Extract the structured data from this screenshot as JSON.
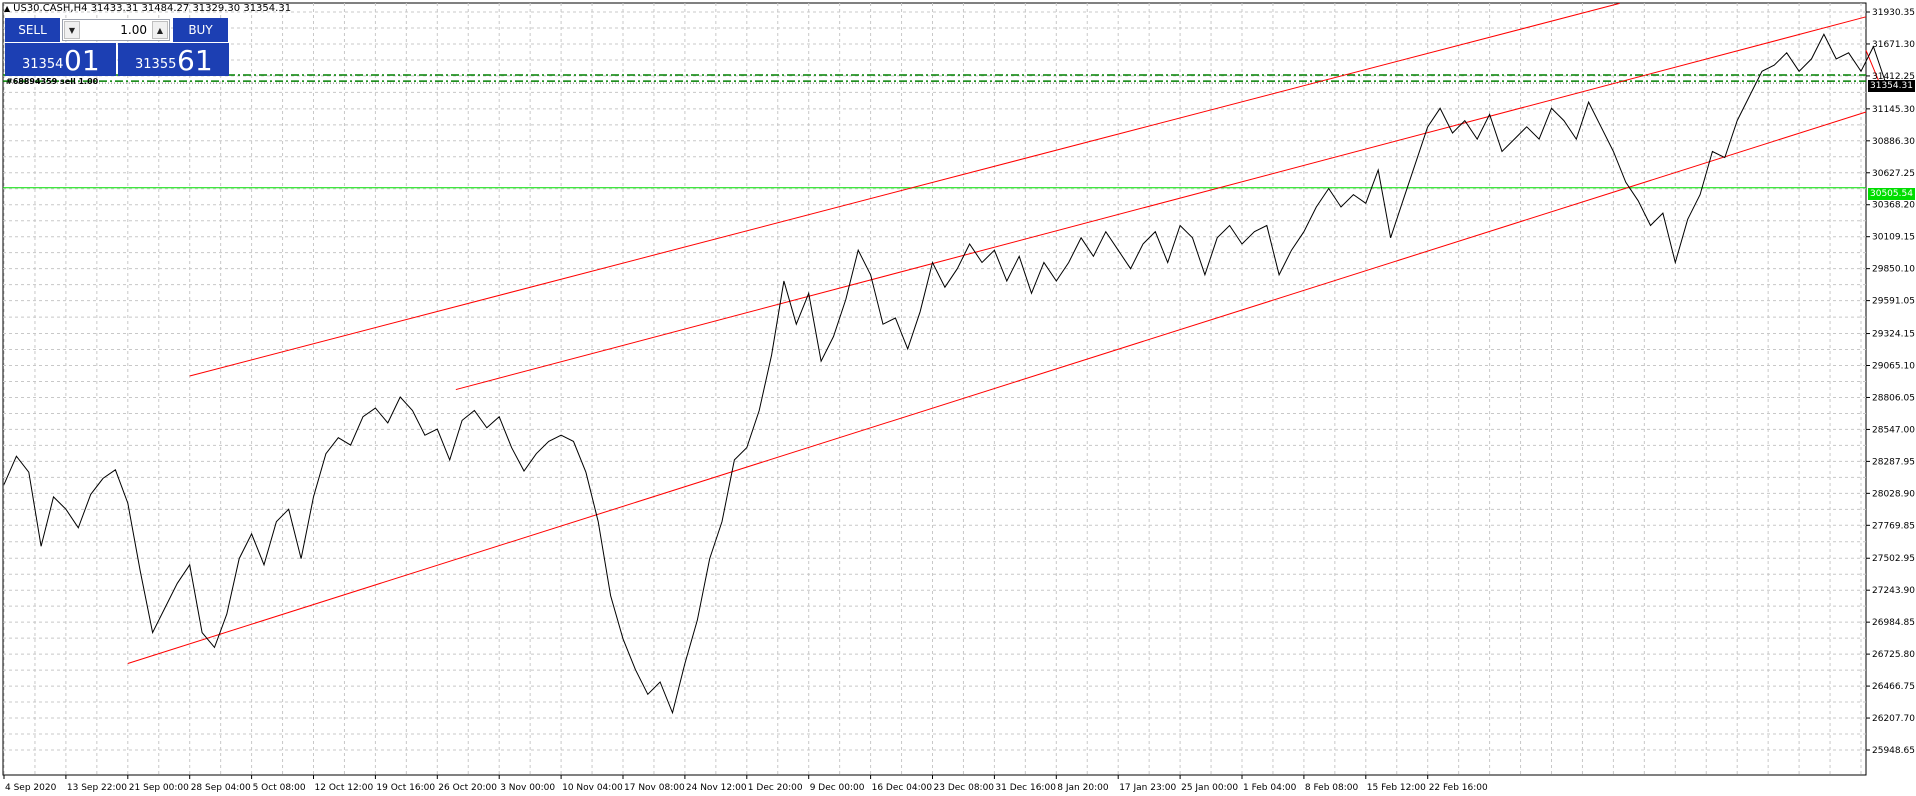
{
  "header": {
    "symbol_line": "US30.CASH,H4  31433.31 31484.27 31329.30 31354.31"
  },
  "one_click": {
    "sell_label": "SELL",
    "buy_label": "BUY",
    "volume": "1.00",
    "sell_price_small": "31354",
    "sell_price_big": "01",
    "buy_price_small": "31355",
    "buy_price_big": "61"
  },
  "order_label": "#68894359 sell 1.00",
  "price_tags": {
    "current": "31354.31",
    "green": "30505.54"
  },
  "colors": {
    "background": "#ffffff",
    "grid": "#c8c8c8",
    "price_line": "#000000",
    "channel": "#ff0000",
    "green_line": "#00dd00",
    "order_line": "#008000",
    "oneclick_blue": "#1c3fb3"
  },
  "y_ticks": [
    "31930.35",
    "31671.30",
    "31412.25",
    "31145.30",
    "30886.30",
    "30627.25",
    "30368.20",
    "30109.15",
    "29850.10",
    "29591.05",
    "29324.15",
    "29065.10",
    "28806.05",
    "28547.00",
    "28287.95",
    "28028.90",
    "27769.85",
    "27502.95",
    "27243.90",
    "26984.85",
    "26725.80",
    "26466.75",
    "26207.70",
    "25948.65"
  ],
  "x_ticks": [
    "4 Sep 2020",
    "13 Sep 22:00",
    "21 Sep 00:00",
    "28 Sep 04:00",
    "5 Oct 08:00",
    "12 Oct 12:00",
    "19 Oct 16:00",
    "26 Oct 20:00",
    "3 Nov 00:00",
    "10 Nov 04:00",
    "17 Nov 08:00",
    "24 Nov 12:00",
    "1 Dec 20:00",
    "9 Dec 00:00",
    "16 Dec 04:00",
    "23 Dec 08:00",
    "31 Dec 16:00",
    "8 Jan 20:00",
    "17 Jan 23:00",
    "25 Jan 00:00",
    "1 Feb 04:00",
    "8 Feb 08:00",
    "15 Feb 12:00",
    "22 Feb 16:00"
  ],
  "chart_data": {
    "type": "line",
    "symbol": "US30.CASH",
    "timeframe": "H4",
    "ohlc_last": {
      "open": 31433.31,
      "high": 31484.27,
      "low": 31329.3,
      "close": 31354.31
    },
    "ylim": [
      25948.65,
      31930.35
    ],
    "x_categories": [
      "4 Sep 2020",
      "13 Sep 22:00",
      "21 Sep 00:00",
      "28 Sep 04:00",
      "5 Oct 08:00",
      "12 Oct 12:00",
      "19 Oct 16:00",
      "26 Oct 20:00",
      "3 Nov 00:00",
      "10 Nov 04:00",
      "17 Nov 08:00",
      "24 Nov 12:00",
      "1 Dec 20:00",
      "9 Dec 00:00",
      "16 Dec 04:00",
      "23 Dec 08:00",
      "31 Dec 16:00",
      "8 Jan 20:00",
      "17 Jan 23:00",
      "25 Jan 00:00",
      "1 Feb 04:00",
      "8 Feb 08:00",
      "15 Feb 12:00",
      "22 Feb 16:00"
    ],
    "series": [
      {
        "values": [
          [
            0,
            28100
          ],
          [
            0.2,
            28330
          ],
          [
            0.4,
            28200
          ],
          [
            0.6,
            27600
          ],
          [
            0.8,
            28000
          ],
          [
            1.0,
            27900
          ],
          [
            1.2,
            27750
          ],
          [
            1.4,
            28020
          ],
          [
            1.6,
            28150
          ],
          [
            1.8,
            28220
          ],
          [
            2.0,
            27950
          ],
          [
            2.2,
            27400
          ],
          [
            2.4,
            26900
          ],
          [
            2.6,
            27100
          ],
          [
            2.8,
            27300
          ],
          [
            3.0,
            27450
          ],
          [
            3.2,
            26900
          ],
          [
            3.4,
            26780
          ],
          [
            3.6,
            27050
          ],
          [
            3.8,
            27500
          ],
          [
            4.0,
            27700
          ],
          [
            4.2,
            27450
          ],
          [
            4.4,
            27800
          ],
          [
            4.6,
            27900
          ],
          [
            4.8,
            27500
          ],
          [
            5.0,
            28000
          ],
          [
            5.2,
            28350
          ],
          [
            5.4,
            28480
          ],
          [
            5.6,
            28420
          ],
          [
            5.8,
            28650
          ],
          [
            6.0,
            28720
          ],
          [
            6.2,
            28600
          ],
          [
            6.4,
            28810
          ],
          [
            6.6,
            28700
          ],
          [
            6.8,
            28500
          ],
          [
            7.0,
            28550
          ],
          [
            7.2,
            28300
          ],
          [
            7.4,
            28620
          ],
          [
            7.6,
            28700
          ],
          [
            7.8,
            28560
          ],
          [
            8.0,
            28650
          ],
          [
            8.2,
            28400
          ],
          [
            8.4,
            28210
          ],
          [
            8.6,
            28350
          ],
          [
            8.8,
            28450
          ],
          [
            9.0,
            28500
          ],
          [
            9.2,
            28450
          ],
          [
            9.4,
            28200
          ],
          [
            9.6,
            27800
          ],
          [
            9.8,
            27200
          ],
          [
            10.0,
            26850
          ],
          [
            10.2,
            26600
          ],
          [
            10.4,
            26400
          ],
          [
            10.6,
            26500
          ],
          [
            10.8,
            26250
          ],
          [
            11.0,
            26650
          ],
          [
            11.2,
            27000
          ],
          [
            11.4,
            27500
          ],
          [
            11.6,
            27800
          ],
          [
            11.8,
            28300
          ],
          [
            12.0,
            28400
          ],
          [
            12.2,
            28700
          ],
          [
            12.4,
            29150
          ],
          [
            12.6,
            29750
          ],
          [
            12.8,
            29400
          ],
          [
            13.0,
            29650
          ],
          [
            13.2,
            29100
          ],
          [
            13.4,
            29300
          ],
          [
            13.6,
            29600
          ],
          [
            13.8,
            30000
          ],
          [
            14.0,
            29800
          ],
          [
            14.2,
            29400
          ],
          [
            14.4,
            29450
          ],
          [
            14.6,
            29200
          ],
          [
            14.8,
            29500
          ],
          [
            15.0,
            29900
          ],
          [
            15.2,
            29700
          ],
          [
            15.4,
            29850
          ],
          [
            15.6,
            30050
          ],
          [
            15.8,
            29900
          ],
          [
            16.0,
            30000
          ],
          [
            16.2,
            29750
          ],
          [
            16.4,
            29950
          ],
          [
            16.6,
            29650
          ],
          [
            16.8,
            29900
          ],
          [
            17.0,
            29750
          ],
          [
            17.2,
            29900
          ],
          [
            17.4,
            30100
          ],
          [
            17.6,
            29950
          ],
          [
            17.8,
            30150
          ],
          [
            18.0,
            30000
          ],
          [
            18.2,
            29850
          ],
          [
            18.4,
            30050
          ],
          [
            18.6,
            30150
          ],
          [
            18.8,
            29900
          ],
          [
            19.0,
            30200
          ],
          [
            19.2,
            30100
          ],
          [
            19.4,
            29800
          ],
          [
            19.6,
            30100
          ],
          [
            19.8,
            30200
          ],
          [
            20.0,
            30050
          ],
          [
            20.2,
            30150
          ],
          [
            20.4,
            30200
          ],
          [
            20.6,
            29800
          ],
          [
            20.8,
            30000
          ],
          [
            21.0,
            30150
          ],
          [
            21.2,
            30350
          ],
          [
            21.4,
            30500
          ],
          [
            21.6,
            30350
          ],
          [
            21.8,
            30450
          ],
          [
            22.0,
            30380
          ],
          [
            22.2,
            30650
          ],
          [
            22.4,
            30100
          ],
          [
            22.6,
            30400
          ],
          [
            22.8,
            30700
          ],
          [
            23.0,
            31000
          ],
          [
            23.2,
            31150
          ],
          [
            23.4,
            30950
          ],
          [
            23.6,
            31050
          ],
          [
            23.8,
            30900
          ],
          [
            24.0,
            31100
          ],
          [
            24.2,
            30800
          ],
          [
            24.4,
            30900
          ],
          [
            24.6,
            31000
          ],
          [
            24.8,
            30900
          ],
          [
            25.0,
            31150
          ],
          [
            25.2,
            31050
          ],
          [
            25.4,
            30900
          ],
          [
            25.6,
            31200
          ],
          [
            25.8,
            31000
          ],
          [
            26.0,
            30800
          ],
          [
            26.2,
            30550
          ],
          [
            26.4,
            30400
          ],
          [
            26.6,
            30200
          ],
          [
            26.8,
            30300
          ],
          [
            27.0,
            29900
          ],
          [
            27.2,
            30250
          ],
          [
            27.4,
            30450
          ],
          [
            27.6,
            30800
          ],
          [
            27.8,
            30750
          ],
          [
            28.0,
            31050
          ],
          [
            28.2,
            31250
          ],
          [
            28.4,
            31450
          ],
          [
            28.6,
            31500
          ],
          [
            28.8,
            31600
          ],
          [
            29.0,
            31450
          ],
          [
            29.2,
            31550
          ],
          [
            29.4,
            31750
          ],
          [
            29.6,
            31550
          ],
          [
            29.8,
            31600
          ],
          [
            30.0,
            31450
          ],
          [
            30.2,
            31650
          ],
          [
            30.4,
            31354.31
          ]
        ]
      }
    ],
    "horizontal_lines": [
      {
        "price": 31354.31,
        "style": "current price"
      },
      {
        "price": 30505.54,
        "style": "green level"
      },
      {
        "price": 31420,
        "style": "dash-dot order line"
      },
      {
        "price": 31370,
        "style": "dash-dot order line"
      }
    ],
    "trend_lines": [
      {
        "x1": 2.0,
        "y1": 26650,
        "x2": 30.9,
        "y2": 31250
      },
      {
        "x1": 3.0,
        "y1": 28980,
        "x2": 26.1,
        "y2": 32000
      },
      {
        "x1": 7.3,
        "y1": 28870,
        "x2": 30.9,
        "y2": 32000
      },
      {
        "x1": 30.3,
        "y1": 31354,
        "x2": 31.0,
        "y2": 30505
      }
    ],
    "grid": true
  }
}
